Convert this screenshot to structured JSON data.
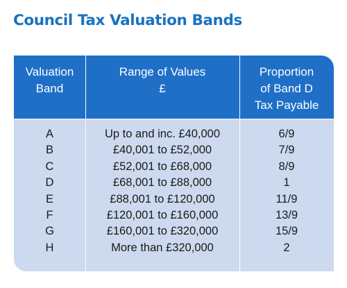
{
  "title": "Council Tax Valuation Bands",
  "colors": {
    "title": "#1a72c0",
    "header_background": "#1f6fc7",
    "body_background": "#ccd9ee",
    "header_text": "#ffffff",
    "body_text": "#1a1a1a"
  },
  "table": {
    "headers": {
      "band": [
        "Valuation",
        "Band"
      ],
      "range": [
        "Range of Values",
        "£"
      ],
      "proportion": [
        "Proportion",
        "of Band D",
        "Tax Payable"
      ]
    },
    "bands": [
      "A",
      "B",
      "C",
      "D",
      "E",
      "F",
      "G",
      "H"
    ],
    "ranges": [
      "Up to and inc. £40,000",
      "£40,001 to £52,000",
      "£52,001 to £68,000",
      "£68,001 to £88,000",
      "£88,001 to £120,000",
      "£120,001 to £160,000",
      "£160,001 to £320,000",
      "More than £320,000"
    ],
    "proportions": [
      "6/9",
      "7/9",
      "8/9",
      "1",
      "11/9",
      "13/9",
      "15/9",
      "2"
    ]
  }
}
